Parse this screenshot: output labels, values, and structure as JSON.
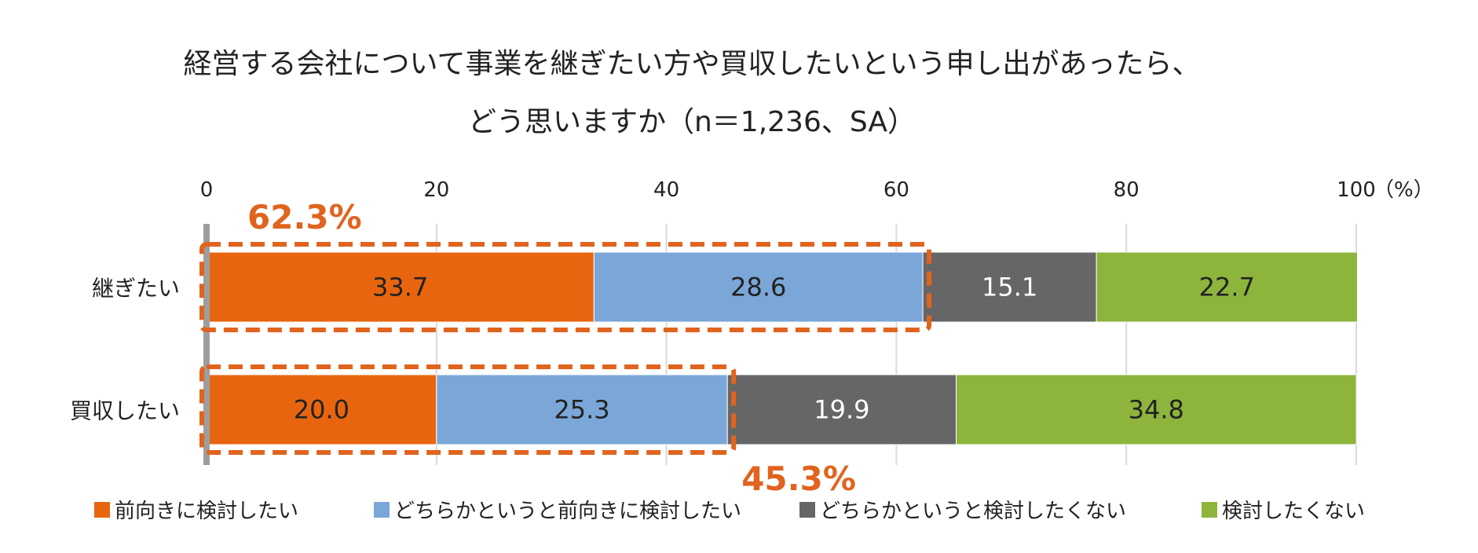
{
  "title_line1": "経営する会社について事業を継ぎたい方や買収したいという申し出があったら、",
  "title_line2": "どう思いますか（n＝1,236、SA）",
  "colors": {
    "orange": "#E8650F",
    "blue": "#7BA7D8",
    "gray": "#666666",
    "green": "#8DB53C",
    "highlight": "#E0641E"
  },
  "chart_data": {
    "type": "bar",
    "orientation": "horizontal",
    "stacked": true,
    "categories": [
      "継ぎたい",
      "買収したい"
    ],
    "series": [
      {
        "name": "前向きに検討したい",
        "values": [
          33.7,
          20.0
        ],
        "color": "#E8650F",
        "label_color": "#222222"
      },
      {
        "name": "どちらかというと前向きに検討したい",
        "values": [
          28.6,
          25.3
        ],
        "color": "#7BA7D8",
        "label_color": "#222222"
      },
      {
        "name": "どちらかというと検討したくない",
        "values": [
          15.1,
          19.9
        ],
        "color": "#666666",
        "label_color": "#ffffff"
      },
      {
        "name": "検討したくない",
        "values": [
          22.7,
          34.8
        ],
        "color": "#8DB53C",
        "label_color": "#222222"
      }
    ],
    "xlim": [
      0,
      100
    ],
    "xticks": [
      "0",
      "20",
      "40",
      "60",
      "80",
      "100"
    ],
    "unit_label": "（%）",
    "grid": true,
    "legend_position": "bottom",
    "annotations": [
      {
        "category": "継ぎたい",
        "text": "62.3%",
        "value": 62.3,
        "placement": "above"
      },
      {
        "category": "買収したい",
        "text": "45.3%",
        "value": 45.3,
        "placement": "below"
      }
    ]
  }
}
